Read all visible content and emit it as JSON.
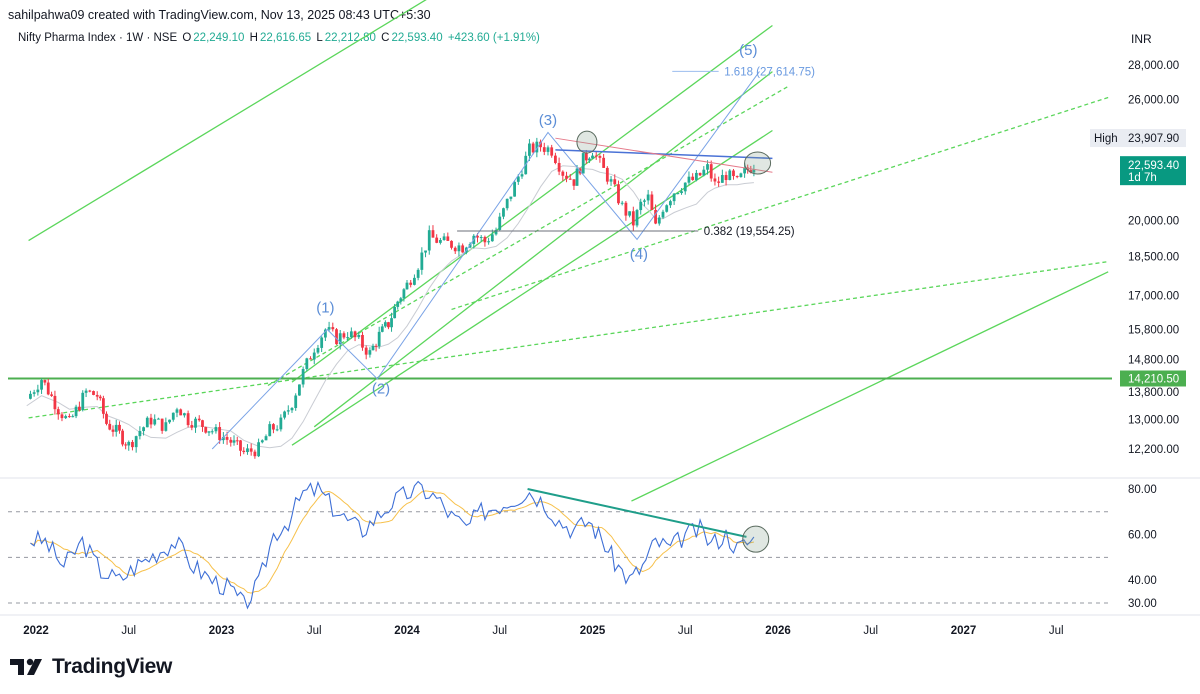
{
  "header": {
    "attribution": "sahilpahwa09 created with TradingView.com, Nov 13, 2025 08:43 UTC+5:30"
  },
  "legend": {
    "symbol": "Nifty Pharma Index · 1W · NSE",
    "o_label": "O",
    "o_value": "22,249.10",
    "h_label": "H",
    "h_value": "22,616.65",
    "l_label": "L",
    "l_value": "22,212.80",
    "c_label": "C",
    "c_value": "22,593.40",
    "change": "+423.60 (+1.91%)"
  },
  "currency": "INR",
  "brand": "TradingView",
  "colors": {
    "up": "#22ab94",
    "down": "#f23645",
    "channel": "#5bd65b",
    "wave": "#6a9ae0",
    "rsi": "#3e6fd6",
    "rsi_ma": "#f7c14b",
    "last_price_bg": "#089981",
    "support_bg": "#4caf50"
  },
  "chart_data": {
    "type": "candlestick",
    "symbol": "Nifty Pharma Index",
    "interval": "1W",
    "y_scale": "log",
    "price_ticks": [
      "28,000.00",
      "26,000.00",
      "20,000.00",
      "18,500.00",
      "17,000.00",
      "15,800.00",
      "14,800.00",
      "13,800.00",
      "13,000.00",
      "12,200.00"
    ],
    "price_tick_values": [
      28000,
      26000,
      20000,
      18500,
      17000,
      15800,
      14800,
      13800,
      13000,
      12200
    ],
    "rsi_ticks": [
      "80.00",
      "60.00",
      "40.00",
      "30.00"
    ],
    "rsi_tick_values": [
      80,
      60,
      40,
      30
    ],
    "time_ticks": [
      {
        "label": "2022",
        "t": 2022.0,
        "bold": true
      },
      {
        "label": "Jul",
        "t": 2022.5,
        "bold": false
      },
      {
        "label": "2023",
        "t": 2023.0,
        "bold": true
      },
      {
        "label": "Jul",
        "t": 2023.5,
        "bold": false
      },
      {
        "label": "2024",
        "t": 2024.0,
        "bold": true
      },
      {
        "label": "Jul",
        "t": 2024.5,
        "bold": false
      },
      {
        "label": "2025",
        "t": 2025.0,
        "bold": true
      },
      {
        "label": "Jul",
        "t": 2025.5,
        "bold": false
      },
      {
        "label": "2026",
        "t": 2026.0,
        "bold": true
      },
      {
        "label": "Jul",
        "t": 2026.5,
        "bold": false
      },
      {
        "label": "2027",
        "t": 2027.0,
        "bold": true
      },
      {
        "label": "Jul",
        "t": 2027.5,
        "bold": false
      }
    ],
    "price_path": [
      {
        "t": 2021.95,
        "c": 13600
      },
      {
        "t": 2022.03,
        "c": 14200
      },
      {
        "t": 2022.12,
        "c": 13300
      },
      {
        "t": 2022.18,
        "c": 12900
      },
      {
        "t": 2022.27,
        "c": 13800
      },
      {
        "t": 2022.33,
        "c": 13700
      },
      {
        "t": 2022.38,
        "c": 12900
      },
      {
        "t": 2022.45,
        "c": 12600
      },
      {
        "t": 2022.5,
        "c": 12300
      },
      {
        "t": 2022.56,
        "c": 12700
      },
      {
        "t": 2022.62,
        "c": 13000
      },
      {
        "t": 2022.7,
        "c": 12800
      },
      {
        "t": 2022.76,
        "c": 13400
      },
      {
        "t": 2022.82,
        "c": 13000
      },
      {
        "t": 2022.88,
        "c": 12900
      },
      {
        "t": 2022.95,
        "c": 12700
      },
      {
        "t": 2023.05,
        "c": 12400
      },
      {
        "t": 2023.12,
        "c": 12100
      },
      {
        "t": 2023.2,
        "c": 12200
      },
      {
        "t": 2023.26,
        "c": 12700
      },
      {
        "t": 2023.32,
        "c": 12900
      },
      {
        "t": 2023.38,
        "c": 13500
      },
      {
        "t": 2023.44,
        "c": 14400
      },
      {
        "t": 2023.5,
        "c": 15200
      },
      {
        "t": 2023.56,
        "c": 15800
      },
      {
        "t": 2023.62,
        "c": 15500
      },
      {
        "t": 2023.68,
        "c": 15700
      },
      {
        "t": 2023.74,
        "c": 15400
      },
      {
        "t": 2023.8,
        "c": 15000
      },
      {
        "t": 2023.85,
        "c": 15600
      },
      {
        "t": 2023.9,
        "c": 16000
      },
      {
        "t": 2023.95,
        "c": 16800
      },
      {
        "t": 2024.0,
        "c": 17400
      },
      {
        "t": 2024.06,
        "c": 18200
      },
      {
        "t": 2024.12,
        "c": 19300
      },
      {
        "t": 2024.18,
        "c": 19100
      },
      {
        "t": 2024.24,
        "c": 19000
      },
      {
        "t": 2024.3,
        "c": 18900
      },
      {
        "t": 2024.36,
        "c": 19400
      },
      {
        "t": 2024.42,
        "c": 19100
      },
      {
        "t": 2024.48,
        "c": 19600
      },
      {
        "t": 2024.54,
        "c": 20800
      },
      {
        "t": 2024.6,
        "c": 22000
      },
      {
        "t": 2024.66,
        "c": 23300
      },
      {
        "t": 2024.72,
        "c": 23500
      },
      {
        "t": 2024.78,
        "c": 23300
      },
      {
        "t": 2024.84,
        "c": 22200
      },
      {
        "t": 2024.9,
        "c": 21800
      },
      {
        "t": 2024.95,
        "c": 22800
      },
      {
        "t": 2025.0,
        "c": 23300
      },
      {
        "t": 2025.04,
        "c": 22600
      },
      {
        "t": 2025.1,
        "c": 21700
      },
      {
        "t": 2025.16,
        "c": 20600
      },
      {
        "t": 2025.22,
        "c": 19900
      },
      {
        "t": 2025.26,
        "c": 20700
      },
      {
        "t": 2025.3,
        "c": 21000
      },
      {
        "t": 2025.34,
        "c": 19700
      },
      {
        "t": 2025.38,
        "c": 20600
      },
      {
        "t": 2025.44,
        "c": 21300
      },
      {
        "t": 2025.5,
        "c": 21700
      },
      {
        "t": 2025.56,
        "c": 21900
      },
      {
        "t": 2025.62,
        "c": 22400
      },
      {
        "t": 2025.66,
        "c": 21600
      },
      {
        "t": 2025.72,
        "c": 22100
      },
      {
        "t": 2025.78,
        "c": 21700
      },
      {
        "t": 2025.82,
        "c": 22200
      },
      {
        "t": 2025.87,
        "c": 22593
      }
    ],
    "rsi_path": [
      {
        "t": 2021.95,
        "v": 58
      },
      {
        "t": 2022.05,
        "v": 57
      },
      {
        "t": 2022.15,
        "v": 46
      },
      {
        "t": 2022.25,
        "v": 57
      },
      {
        "t": 2022.35,
        "v": 44
      },
      {
        "t": 2022.45,
        "v": 40
      },
      {
        "t": 2022.55,
        "v": 47
      },
      {
        "t": 2022.65,
        "v": 52
      },
      {
        "t": 2022.75,
        "v": 57
      },
      {
        "t": 2022.85,
        "v": 46
      },
      {
        "t": 2022.95,
        "v": 40
      },
      {
        "t": 2023.05,
        "v": 36
      },
      {
        "t": 2023.12,
        "v": 29
      },
      {
        "t": 2023.2,
        "v": 38
      },
      {
        "t": 2023.28,
        "v": 60
      },
      {
        "t": 2023.36,
        "v": 66
      },
      {
        "t": 2023.44,
        "v": 78
      },
      {
        "t": 2023.52,
        "v": 80
      },
      {
        "t": 2023.6,
        "v": 72
      },
      {
        "t": 2023.68,
        "v": 66
      },
      {
        "t": 2023.76,
        "v": 62
      },
      {
        "t": 2023.84,
        "v": 68
      },
      {
        "t": 2023.92,
        "v": 74
      },
      {
        "t": 2024.0,
        "v": 78
      },
      {
        "t": 2024.08,
        "v": 80
      },
      {
        "t": 2024.16,
        "v": 76
      },
      {
        "t": 2024.24,
        "v": 68
      },
      {
        "t": 2024.32,
        "v": 63
      },
      {
        "t": 2024.4,
        "v": 70
      },
      {
        "t": 2024.5,
        "v": 73
      },
      {
        "t": 2024.58,
        "v": 76
      },
      {
        "t": 2024.66,
        "v": 79
      },
      {
        "t": 2024.74,
        "v": 74
      },
      {
        "t": 2024.82,
        "v": 66
      },
      {
        "t": 2024.9,
        "v": 62
      },
      {
        "t": 2024.98,
        "v": 66
      },
      {
        "t": 2025.05,
        "v": 58
      },
      {
        "t": 2025.12,
        "v": 48
      },
      {
        "t": 2025.2,
        "v": 40
      },
      {
        "t": 2025.27,
        "v": 46
      },
      {
        "t": 2025.34,
        "v": 57
      },
      {
        "t": 2025.42,
        "v": 54
      },
      {
        "t": 2025.5,
        "v": 60
      },
      {
        "t": 2025.58,
        "v": 62
      },
      {
        "t": 2025.64,
        "v": 56
      },
      {
        "t": 2025.72,
        "v": 60
      },
      {
        "t": 2025.78,
        "v": 54
      },
      {
        "t": 2025.87,
        "v": 58
      }
    ],
    "wave_labels": [
      {
        "label": "(1)",
        "t": 2023.56,
        "price": 16400
      },
      {
        "label": "(2)",
        "t": 2023.86,
        "price": 13750
      },
      {
        "label": "(3)",
        "t": 2024.76,
        "price": 24600
      },
      {
        "label": "(4)",
        "t": 2025.25,
        "price": 18400
      },
      {
        "label": "(5)",
        "t": 2025.84,
        "price": 28600
      }
    ],
    "fib_levels": [
      {
        "label": "0.382 (19,554.25)",
        "value": 19554.25,
        "ratio": 0.382
      },
      {
        "label": "1.618 (27,614.75)",
        "value": 27614.75,
        "ratio": 1.618
      }
    ],
    "markers": [
      {
        "label": "High",
        "value_label": "23,907.90",
        "value": 23907.9
      },
      {
        "label": "22,593.40",
        "sublabel": "1d 7h",
        "value": 22593.4,
        "kind": "last_price"
      },
      {
        "label": "14,210.50",
        "value": 14210.5,
        "kind": "support"
      }
    ]
  }
}
